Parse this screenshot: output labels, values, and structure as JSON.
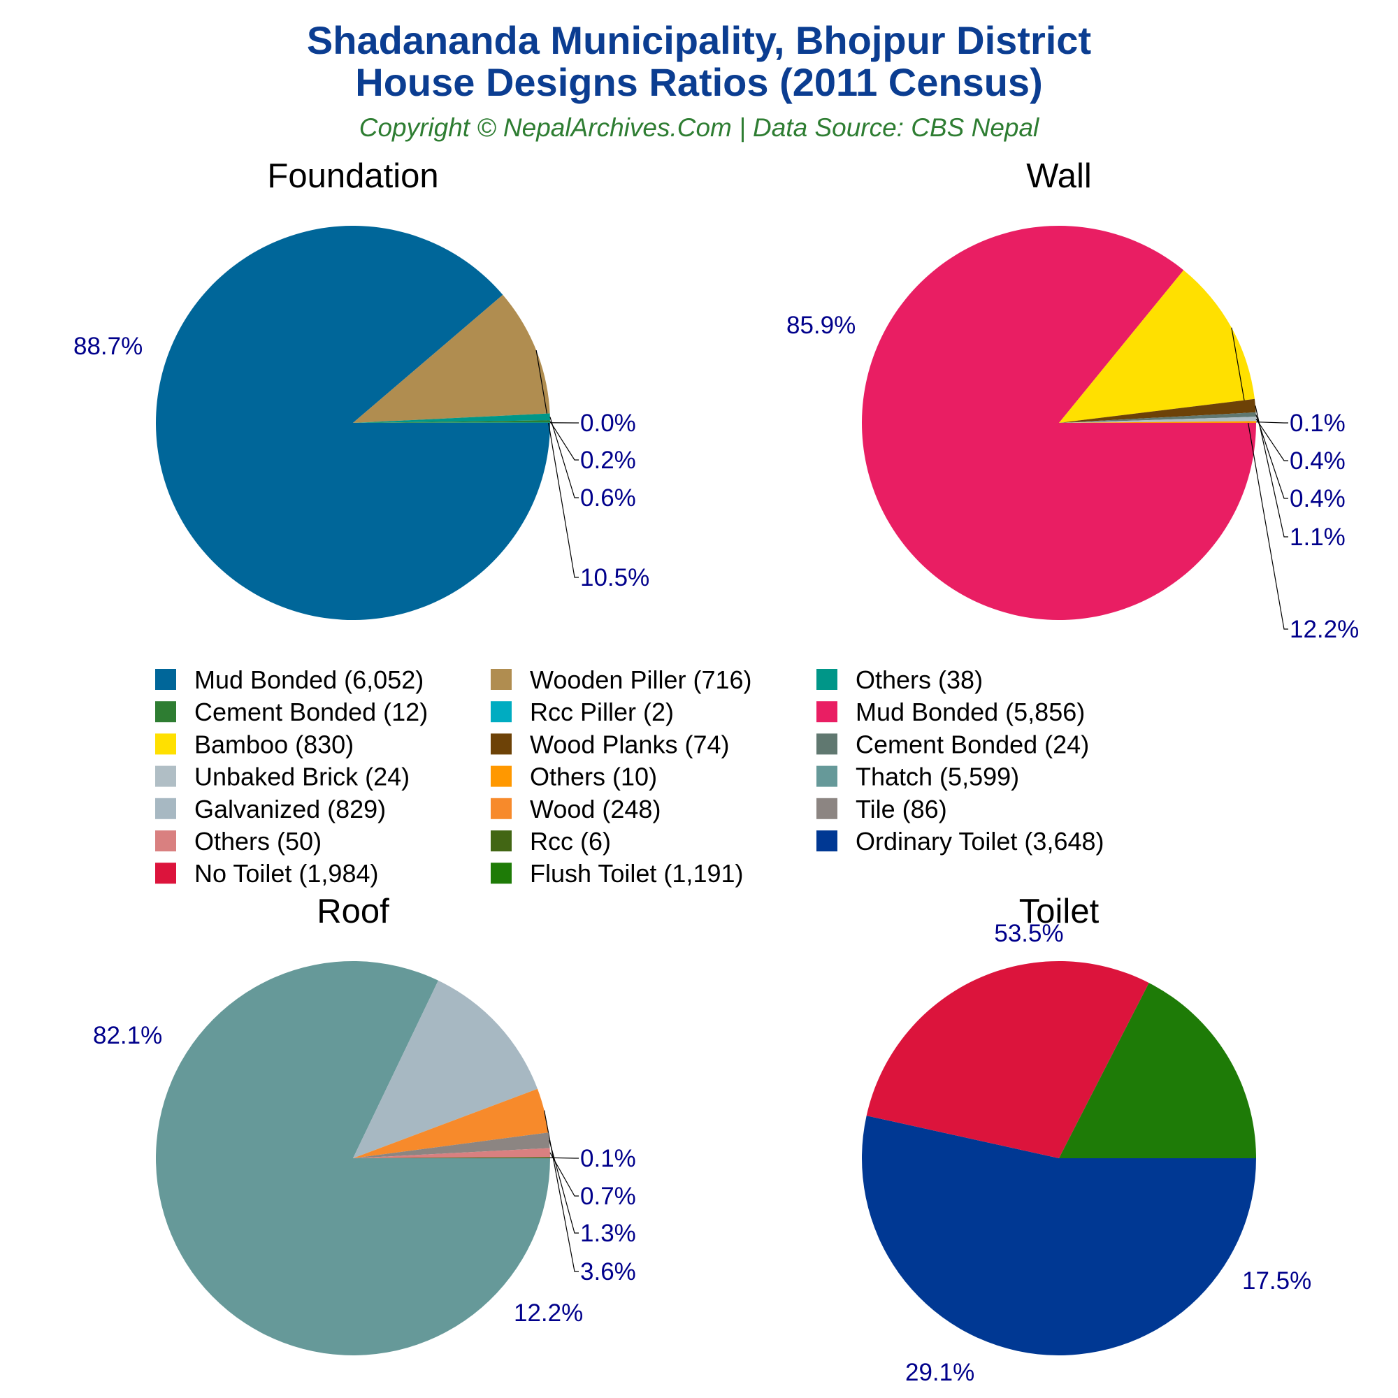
{
  "title_line1": "Shadananda Municipality, Bhojpur District",
  "title_line2": "House Designs Ratios (2011 Census)",
  "subtitle": "Copyright © NepalArchives.Com | Data Source: CBS Nepal",
  "chart_data": [
    {
      "type": "pie",
      "title": "Foundation",
      "slices": [
        {
          "name": "Mud Bonded",
          "count_label": "6,052",
          "value": 6052,
          "percent": "88.7%",
          "color": "#006699"
        },
        {
          "name": "Wooden Piller",
          "count_label": "716",
          "value": 716,
          "percent": "10.5%",
          "color": "#b08d50"
        },
        {
          "name": "Others",
          "count_label": "38",
          "value": 38,
          "percent": "0.6%",
          "color": "#009688"
        },
        {
          "name": "Cement Bonded",
          "count_label": "12",
          "value": 12,
          "percent": "0.2%",
          "color": "#2e7d32"
        },
        {
          "name": "Rcc Piller",
          "count_label": "2",
          "value": 2,
          "percent": "0.0%",
          "color": "#00acc1"
        }
      ]
    },
    {
      "type": "pie",
      "title": "Wall",
      "slices": [
        {
          "name": "Mud Bonded",
          "count_label": "5,856",
          "value": 5856,
          "percent": "85.9%",
          "color": "#e91e63"
        },
        {
          "name": "Bamboo",
          "count_label": "830",
          "value": 830,
          "percent": "12.2%",
          "color": "#ffe000"
        },
        {
          "name": "Wood Planks",
          "count_label": "74",
          "value": 74,
          "percent": "1.1%",
          "color": "#6d4207"
        },
        {
          "name": "Cement Bonded",
          "count_label": "24",
          "value": 24,
          "percent": "0.4%",
          "color": "#607870"
        },
        {
          "name": "Unbaked Brick",
          "count_label": "24",
          "value": 24,
          "percent": "0.4%",
          "color": "#b0bec5"
        },
        {
          "name": "Others",
          "count_label": "10",
          "value": 10,
          "percent": "0.1%",
          "color": "#ff9800"
        }
      ]
    },
    {
      "type": "pie",
      "title": "Roof",
      "slices": [
        {
          "name": "Thatch",
          "count_label": "5,599",
          "value": 5599,
          "percent": "82.1%",
          "color": "#669999"
        },
        {
          "name": "Galvanized",
          "count_label": "829",
          "value": 829,
          "percent": "12.2%",
          "color": "#a7b8c2"
        },
        {
          "name": "Wood",
          "count_label": "248",
          "value": 248,
          "percent": "3.6%",
          "color": "#f78a2b"
        },
        {
          "name": "Tile",
          "count_label": "86",
          "value": 86,
          "percent": "1.3%",
          "color": "#8c8582"
        },
        {
          "name": "Others",
          "count_label": "50",
          "value": 50,
          "percent": "0.7%",
          "color": "#d98080"
        },
        {
          "name": "Rcc",
          "count_label": "6",
          "value": 6,
          "percent": "0.1%",
          "color": "#426614"
        }
      ]
    },
    {
      "type": "pie",
      "title": "Toilet",
      "slices": [
        {
          "name": "Ordinary Toilet",
          "count_label": "3,648",
          "value": 3648,
          "percent": "53.5%",
          "color": "#003893"
        },
        {
          "name": "No Toilet",
          "count_label": "1,984",
          "value": 1984,
          "percent": "29.1%",
          "color": "#dc143c"
        },
        {
          "name": "Flush Toilet",
          "count_label": "1,191",
          "value": 1191,
          "percent": "17.5%",
          "color": "#1e7b07"
        }
      ]
    }
  ],
  "legend": [
    {
      "label": "Mud Bonded (6,052)",
      "color": "#006699"
    },
    {
      "label": "Cement Bonded (12)",
      "color": "#2e7d32"
    },
    {
      "label": "Bamboo (830)",
      "color": "#ffe000"
    },
    {
      "label": "Unbaked Brick (24)",
      "color": "#b0bec5"
    },
    {
      "label": "Galvanized (829)",
      "color": "#a7b8c2"
    },
    {
      "label": "Others (50)",
      "color": "#d98080"
    },
    {
      "label": "No Toilet (1,984)",
      "color": "#dc143c"
    },
    {
      "label": "Wooden Piller (716)",
      "color": "#b08d50"
    },
    {
      "label": "Rcc Piller (2)",
      "color": "#00acc1"
    },
    {
      "label": "Wood Planks (74)",
      "color": "#6d4207"
    },
    {
      "label": "Others (10)",
      "color": "#ff9800"
    },
    {
      "label": "Wood (248)",
      "color": "#f78a2b"
    },
    {
      "label": "Rcc (6)",
      "color": "#426614"
    },
    {
      "label": "Flush Toilet (1,191)",
      "color": "#1e7b07"
    },
    {
      "label": "Others (38)",
      "color": "#009688"
    },
    {
      "label": "Mud Bonded (5,856)",
      "color": "#e91e63"
    },
    {
      "label": "Cement Bonded (24)",
      "color": "#607870"
    },
    {
      "label": "Thatch (5,599)",
      "color": "#669999"
    },
    {
      "label": "Tile (86)",
      "color": "#8c8582"
    },
    {
      "label": "Ordinary Toilet (3,648)",
      "color": "#003893"
    }
  ]
}
